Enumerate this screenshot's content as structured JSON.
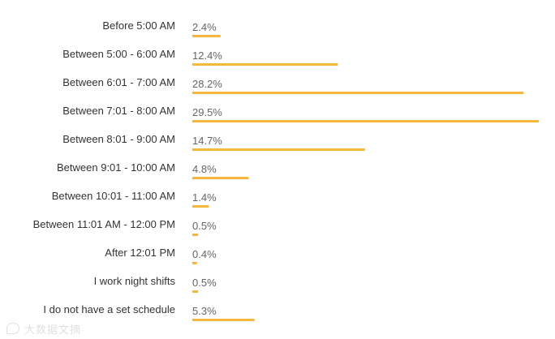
{
  "chart_data": {
    "type": "bar",
    "orientation": "horizontal",
    "title": "",
    "xlabel": "",
    "ylabel": "",
    "xlim": [
      0,
      29.5
    ],
    "grid": false,
    "legend": "none",
    "bar_color": "#f5b83d",
    "categories": [
      "Before 5:00 AM",
      "Between 5:00 - 6:00 AM",
      "Between 6:01 - 7:00 AM",
      "Between 7:01 - 8:00 AM",
      "Between 8:01 - 9:00 AM",
      "Between 9:01 - 10:00 AM",
      "Between 10:01 - 11:00 AM",
      "Between 11:01 AM - 12:00 PM",
      "After 12:01 PM",
      "I work night shifts",
      "I do not have a set schedule"
    ],
    "values": [
      2.4,
      12.4,
      28.2,
      29.5,
      14.7,
      4.8,
      1.4,
      0.5,
      0.4,
      0.5,
      5.3
    ],
    "value_labels": [
      "2.4%",
      "12.4%",
      "28.2%",
      "29.5%",
      "14.7%",
      "4.8%",
      "1.4%",
      "0.5%",
      "0.4%",
      "0.5%",
      "5.3%"
    ]
  },
  "watermark": {
    "icon": "speech-bubble-icon",
    "text": "大数据文摘"
  }
}
